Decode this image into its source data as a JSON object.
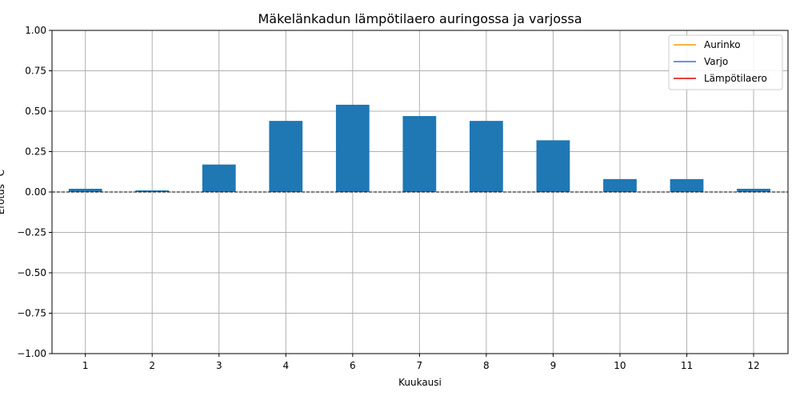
{
  "chart_data": {
    "type": "bar",
    "title": "Mäkelänkadun lämpötilaero auringossa ja varjossa",
    "xlabel": "Kuukausi",
    "ylabel": "Erotus °C",
    "categories": [
      "1",
      "2",
      "3",
      "4",
      "6",
      "7",
      "8",
      "9",
      "10",
      "11",
      "12"
    ],
    "values": [
      0.02,
      0.01,
      0.17,
      0.44,
      0.54,
      0.47,
      0.44,
      0.32,
      0.08,
      0.08,
      0.02
    ],
    "ylim": [
      -1.0,
      1.0
    ],
    "yticks": [
      "−1.00",
      "−0.75",
      "−0.50",
      "−0.25",
      "0.00",
      "0.25",
      "0.50",
      "0.75",
      "1.00"
    ],
    "ytick_values": [
      -1.0,
      -0.75,
      -0.5,
      -0.25,
      0.0,
      0.25,
      0.5,
      0.75,
      1.0
    ],
    "bar_color": "#1f77b4",
    "grid": true,
    "zero_line": {
      "value": 0,
      "style": "dashed",
      "color": "#000000"
    },
    "legend": {
      "placement": "top-right",
      "entries": [
        {
          "label": "Aurinko",
          "color": "#ff9900"
        },
        {
          "label": "Varjo",
          "color": "#4169e1"
        },
        {
          "label": "Lämpötilaero",
          "color": "#e00000"
        }
      ]
    }
  }
}
